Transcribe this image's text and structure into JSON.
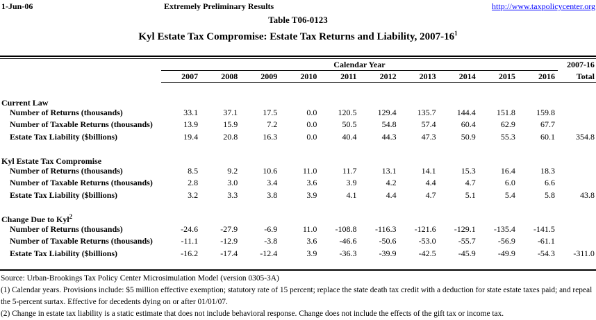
{
  "header": {
    "date": "1-Jun-06",
    "status": "Extremely Preliminary Results",
    "url": "http://www.taxpolicycenter.org"
  },
  "titles": {
    "table_number": "Table T06-0123",
    "main": "Kyl Estate Tax Compromise: Estate Tax Returns and Liability, 2007-16",
    "main_superscript": "1"
  },
  "colors": {
    "link_blue": "#0000FF",
    "text": "#000000",
    "background": "#FFFFFF"
  },
  "table": {
    "calendar_year_label": "Calendar Year",
    "total_header_line1": "2007-16",
    "total_header_line2": "Total",
    "years": [
      "2007",
      "2008",
      "2009",
      "2010",
      "2011",
      "2012",
      "2013",
      "2014",
      "2015",
      "2016"
    ],
    "sections": [
      {
        "title": "Current Law",
        "superscript": "",
        "rows": [
          {
            "label": "Number of Returns (thousands)",
            "values": [
              "33.1",
              "37.1",
              "17.5",
              "0.0",
              "120.5",
              "129.4",
              "135.7",
              "144.4",
              "151.8",
              "159.8"
            ],
            "total": ""
          },
          {
            "label": "Number of Taxable Returns (thousands)",
            "values": [
              "13.9",
              "15.9",
              "7.2",
              "0.0",
              "50.5",
              "54.8",
              "57.4",
              "60.4",
              "62.9",
              "67.7"
            ],
            "total": ""
          },
          {
            "label": "Estate Tax Liability ($billions)",
            "values": [
              "19.4",
              "20.8",
              "16.3",
              "0.0",
              "40.4",
              "44.3",
              "47.3",
              "50.9",
              "55.3",
              "60.1"
            ],
            "total": "354.8"
          }
        ]
      },
      {
        "title": "Kyl Estate Tax Compromise",
        "superscript": "",
        "rows": [
          {
            "label": "Number of Returns (thousands)",
            "values": [
              "8.5",
              "9.2",
              "10.6",
              "11.0",
              "11.7",
              "13.1",
              "14.1",
              "15.3",
              "16.4",
              "18.3"
            ],
            "total": ""
          },
          {
            "label": "Number of Taxable Returns (thousands)",
            "values": [
              "2.8",
              "3.0",
              "3.4",
              "3.6",
              "3.9",
              "4.2",
              "4.4",
              "4.7",
              "6.0",
              "6.6"
            ],
            "total": ""
          },
          {
            "label": "Estate Tax Liability ($billions)",
            "values": [
              "3.2",
              "3.3",
              "3.8",
              "3.9",
              "4.1",
              "4.4",
              "4.7",
              "5.1",
              "5.4",
              "5.8"
            ],
            "total": "43.8"
          }
        ]
      },
      {
        "title": "Change Due to Kyl",
        "superscript": "2",
        "rows": [
          {
            "label": "Number of Returns (thousands)",
            "values": [
              "-24.6",
              "-27.9",
              "-6.9",
              "11.0",
              "-108.8",
              "-116.3",
              "-121.6",
              "-129.1",
              "-135.4",
              "-141.5"
            ],
            "total": ""
          },
          {
            "label": "Number of Taxable Returns (thousands)",
            "values": [
              "-11.1",
              "-12.9",
              "-3.8",
              "3.6",
              "-46.6",
              "-50.6",
              "-53.0",
              "-55.7",
              "-56.9",
              "-61.1"
            ],
            "total": ""
          },
          {
            "label": "Estate Tax Liability ($billions)",
            "values": [
              "-16.2",
              "-17.4",
              "-12.4",
              "3.9",
              "-36.3",
              "-39.9",
              "-42.5",
              "-45.9",
              "-49.9",
              "-54.3"
            ],
            "total": "-311.0"
          }
        ]
      }
    ]
  },
  "footnotes": {
    "source": "Source: Urban-Brookings Tax Policy Center Microsimulation Model (version 0305-3A)",
    "note1": "(1) Calendar years. Provisions include: $5 million effective exemption; statutory rate of 15 percent; replace the state death tax credit with a deduction for state estate taxes paid; and repeal the 5-percent surtax. Effective for decedents dying on or after 01/01/07.",
    "note2": "(2) Change in estate tax liability is a static estimate that does not include behavioral response.  Change does not include the effects of the gift tax or income tax."
  }
}
